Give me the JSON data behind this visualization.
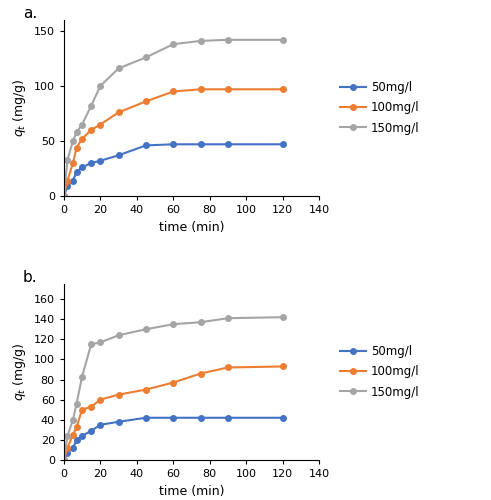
{
  "panel_a": {
    "label": "a.",
    "series": [
      {
        "name": "50mg/l",
        "color": "#4472C4",
        "x": [
          0,
          2,
          5,
          7,
          10,
          15,
          20,
          30,
          45,
          60,
          75,
          90,
          120
        ],
        "y": [
          0,
          9,
          14,
          22,
          26,
          30,
          32,
          37,
          46,
          47,
          47,
          47,
          47
        ]
      },
      {
        "name": "100mg/l",
        "color": "#ED7D31",
        "x": [
          0,
          2,
          5,
          7,
          10,
          15,
          20,
          30,
          45,
          60,
          75,
          90,
          120
        ],
        "y": [
          0,
          14,
          30,
          44,
          52,
          60,
          65,
          76,
          86,
          95,
          97,
          97,
          97
        ]
      },
      {
        "name": "150mg/l",
        "color": "#A5A5A5",
        "x": [
          0,
          2,
          5,
          7,
          10,
          15,
          20,
          30,
          45,
          60,
          75,
          90,
          120
        ],
        "y": [
          0,
          33,
          50,
          58,
          65,
          82,
          100,
          116,
          126,
          138,
          141,
          142,
          142
        ]
      }
    ],
    "ylabel": "$q_t$ (mg/g)",
    "xlabel": "time (min)",
    "xlim": [
      0,
      140
    ],
    "ylim": [
      0,
      160
    ],
    "yticks": [
      0,
      50,
      100,
      150
    ],
    "xticks": [
      0,
      20,
      40,
      60,
      80,
      100,
      120,
      140
    ]
  },
  "panel_b": {
    "label": "b.",
    "series": [
      {
        "name": "50mg/l",
        "color": "#4472C4",
        "x": [
          0,
          2,
          5,
          7,
          10,
          15,
          20,
          30,
          45,
          60,
          75,
          90,
          120
        ],
        "y": [
          0,
          7,
          12,
          20,
          24,
          29,
          35,
          38,
          42,
          42,
          42,
          42,
          42
        ]
      },
      {
        "name": "100mg/l",
        "color": "#ED7D31",
        "x": [
          0,
          2,
          5,
          7,
          10,
          15,
          20,
          30,
          45,
          60,
          75,
          90,
          120
        ],
        "y": [
          0,
          12,
          25,
          33,
          50,
          53,
          60,
          65,
          70,
          77,
          86,
          92,
          93
        ]
      },
      {
        "name": "150mg/l",
        "color": "#A5A5A5",
        "x": [
          0,
          2,
          5,
          7,
          10,
          15,
          20,
          30,
          45,
          60,
          75,
          90,
          120
        ],
        "y": [
          0,
          24,
          40,
          56,
          83,
          115,
          117,
          124,
          130,
          135,
          137,
          141,
          142
        ]
      }
    ],
    "ylabel": "$q_t$ (mg/g)",
    "xlabel": "time (min)",
    "xlim": [
      0,
      140
    ],
    "ylim": [
      0,
      175
    ],
    "yticks": [
      0,
      20,
      40,
      60,
      80,
      100,
      120,
      140,
      160
    ],
    "xticks": [
      0,
      20,
      40,
      60,
      80,
      100,
      120,
      140
    ]
  },
  "line_width": 1.5,
  "marker": "o",
  "marker_size": 4,
  "legend_fontsize": 8.5,
  "axis_fontsize": 9,
  "tick_fontsize": 8,
  "label_fontsize": 11,
  "background_color": "#ffffff"
}
